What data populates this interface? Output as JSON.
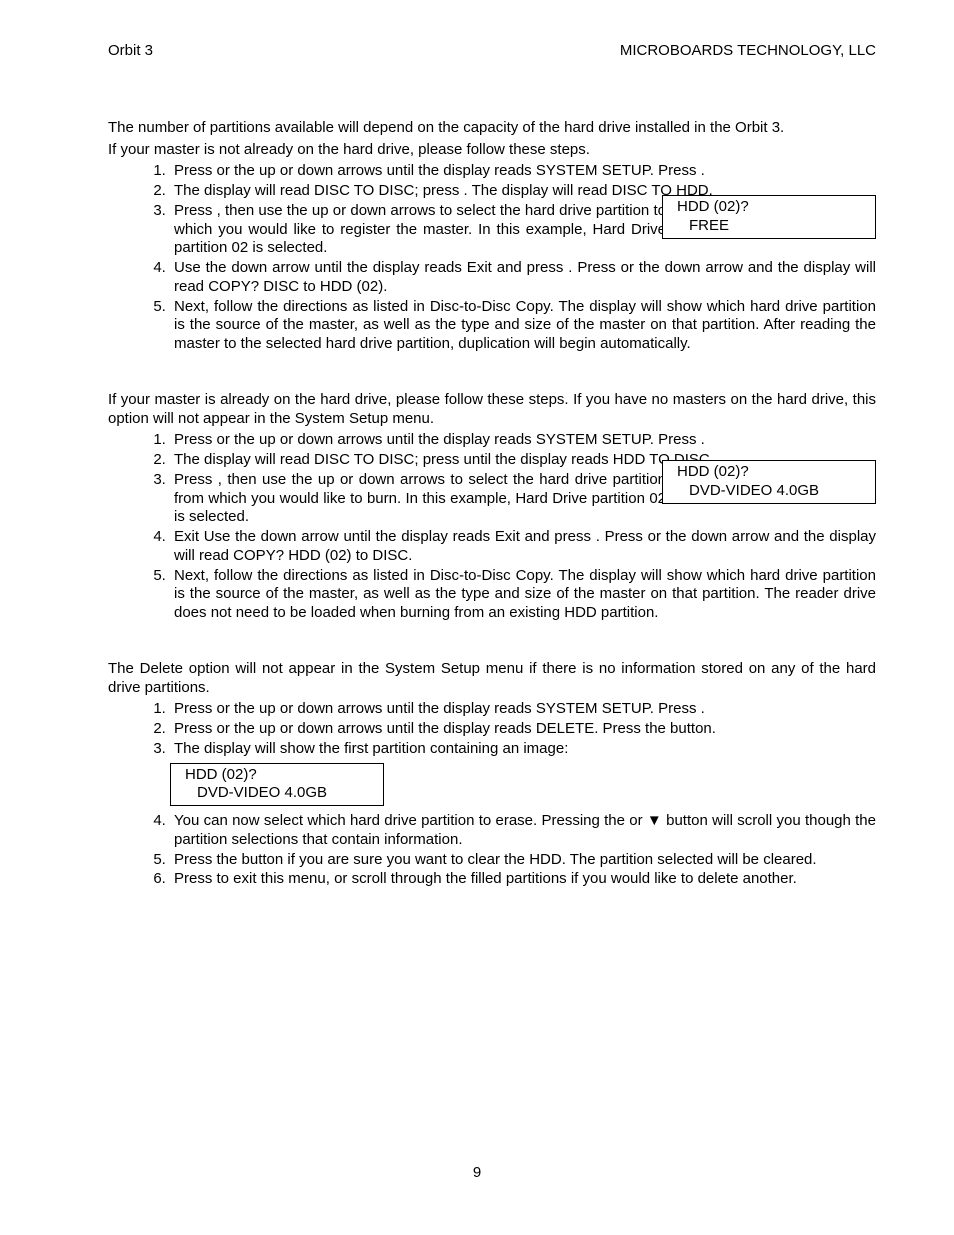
{
  "header": {
    "left": "Orbit 3",
    "right": "MICROBOARDS TECHNOLOGY, LLC"
  },
  "intro1": "The number of partitions available will depend on the capacity of the hard drive installed in the Orbit 3.",
  "intro2": "If your master is not already on the hard drive, please follow these steps.",
  "listA": {
    "i1": "Press        or the up or down arrows until the display reads SYSTEM SETUP.  Press        .",
    "i2": "The display will read DISC TO DISC; press       .  The display will read DISC TO HDD.",
    "i3": "Press        , then use the up or down arrows to select the hard drive partition to which you would like to register the master.  In this example, Hard Drive partition 02 is selected.",
    "i4": "Use the down arrow until the display reads Exit and press       .  Press        or the down arrow and the display will read COPY? DISC to HDD (02).",
    "i5": "Next, follow the directions as listed in Disc-to-Disc Copy.  The display will show which hard drive partition is the source of the master, as well as the type and size of the master on that partition.  After reading the master to the selected hard drive partition, duplication will begin automatically."
  },
  "boxA": {
    "l1": "HDD (02)?",
    "l2": "FREE"
  },
  "intro3": "If your master is already on the hard drive, please follow these steps.  If you have no masters on the hard drive, this option will not appear in the System Setup menu.",
  "listB": {
    "i1": "Press        or the up or down arrows until the display reads SYSTEM SETUP.  Press        .",
    "i2": "The display will read DISC TO DISC; press        until the display reads HDD TO DISC.",
    "i3": "Press        , then use the up or down arrows to select the hard drive partition from which you would like to burn.  In this example, Hard Drive partition 02 is selected.",
    "i4": "Exit Use the down arrow until the display reads Exit and press       .  Press        or the down arrow and the display will read COPY? HDD (02) to DISC.",
    "i5": "Next, follow the directions as listed in Disc-to-Disc Copy.  The display will show which hard drive partition is the source of the master, as well as the type and size of the master on that partition.  The reader drive does not need to be loaded when burning from an existing HDD partition."
  },
  "boxB": {
    "l1": "HDD (02)?",
    "l2": "DVD-VIDEO 4.0GB"
  },
  "intro4": "The Delete option will not appear in the System Setup menu if there is no information stored on any of the hard drive partitions.",
  "listC": {
    "i1": "Press        or the up or down arrows until the display reads SYSTEM SETUP.  Press        .",
    "i2": "Press        or the up or down arrows until the display reads DELETE.  Press the          button.",
    "i3": "The display will show the first partition containing an image:",
    "i4": "You can now select which hard drive partition to erase.  Pressing the        or ▼ button will scroll you though the partition selections that contain information.",
    "i5": "Press the          button if you are sure you want to clear the HDD.  The partition selected will be cleared.",
    "i6": "Press        to exit this menu, or scroll through the filled partitions if you would like to delete another."
  },
  "boxC": {
    "l1": "HDD (02)?",
    "l2": "DVD-VIDEO 4.0GB"
  },
  "pageNumber": "9",
  "colors": {
    "text": "#000000",
    "background": "#ffffff",
    "border": "#000000"
  },
  "typography": {
    "fontFamily": "Arial",
    "fontSize": 15
  }
}
